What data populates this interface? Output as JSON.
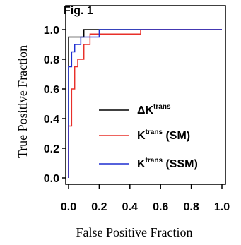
{
  "figure_label": "Fig. 1",
  "chart_data": {
    "type": "line",
    "title": "",
    "xlabel": "False Positive Fraction",
    "ylabel": "True Positive Fraction",
    "xlim": [
      0,
      1
    ],
    "ylim": [
      0,
      1
    ],
    "x_ticks": [
      "0.0",
      "0.2",
      "0.4",
      "0.6",
      "0.8",
      "1.0"
    ],
    "y_ticks": [
      "0.0",
      "0.2",
      "0.4",
      "0.6",
      "0.8",
      "1.0"
    ],
    "grid": false,
    "legend_position": "bottom-right",
    "series": [
      {
        "name_prefix": "ΔK",
        "name_sup": "trans",
        "color": "#000000",
        "points": [
          [
            0,
            0
          ],
          [
            0,
            0.95
          ],
          [
            0.1,
            0.95
          ],
          [
            0.1,
            1.0
          ],
          [
            1.0,
            1.0
          ]
        ]
      },
      {
        "name_prefix": "K",
        "name_sup": "trans",
        "name_suffix": " (SM)",
        "color": "#e8302a",
        "points": [
          [
            0,
            0
          ],
          [
            0,
            0.35
          ],
          [
            0.02,
            0.35
          ],
          [
            0.02,
            0.6
          ],
          [
            0.04,
            0.6
          ],
          [
            0.04,
            0.75
          ],
          [
            0.06,
            0.75
          ],
          [
            0.06,
            0.8
          ],
          [
            0.1,
            0.8
          ],
          [
            0.1,
            0.9
          ],
          [
            0.14,
            0.9
          ],
          [
            0.14,
            0.97
          ],
          [
            0.47,
            0.97
          ],
          [
            0.47,
            1.0
          ],
          [
            1.0,
            1.0
          ]
        ]
      },
      {
        "name_prefix": "K",
        "name_sup": "trans",
        "name_suffix": " (SSM)",
        "color": "#1f2fd1",
        "points": [
          [
            0,
            0
          ],
          [
            0,
            0.75
          ],
          [
            0.02,
            0.75
          ],
          [
            0.02,
            0.85
          ],
          [
            0.04,
            0.85
          ],
          [
            0.04,
            0.9
          ],
          [
            0.08,
            0.9
          ],
          [
            0.08,
            0.95
          ],
          [
            0.2,
            0.95
          ],
          [
            0.2,
            1.0
          ],
          [
            1.0,
            1.0
          ]
        ]
      }
    ]
  }
}
